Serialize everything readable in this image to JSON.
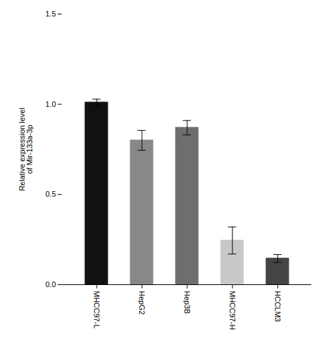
{
  "chart_data": {
    "type": "bar",
    "categories": [
      "MHCC97-L",
      "HepG2",
      "Hep3B",
      "MHCC97-H",
      "HCCLM3"
    ],
    "values": [
      1.01,
      0.8,
      0.87,
      0.245,
      0.145
    ],
    "errors": [
      0.018,
      0.055,
      0.04,
      0.075,
      0.022
    ],
    "colors": [
      "#111111",
      "#888888",
      "#6e6e6e",
      "#c8c8c8",
      "#444444"
    ],
    "ylabel": "Relative expression level\nof Mir-133a-3p",
    "ylim": [
      0,
      1.5
    ],
    "yticks": [
      {
        "value": 0,
        "label": "0.0"
      },
      {
        "value": 0.5,
        "label": "0.5"
      },
      {
        "value": 1,
        "label": "1.0"
      },
      {
        "value": 1.5,
        "label": "1.5"
      }
    ],
    "grid": false
  }
}
